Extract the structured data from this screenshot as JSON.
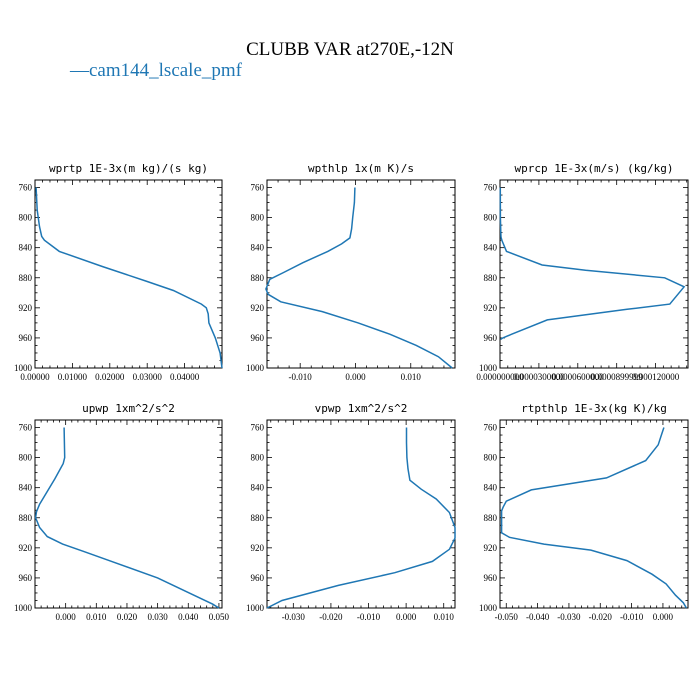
{
  "figure": {
    "title": "CLUBB VAR at270E,-12N",
    "legend": {
      "marker": "—",
      "label": "cam144_lscale_pmf",
      "color": "#1f77b4"
    }
  },
  "chart_data": [
    {
      "type": "line",
      "title": "wprtp  1E-3x(m kg)/(s kg)",
      "xlim": [
        0,
        0.05
      ],
      "ylim": [
        1000,
        750
      ],
      "xticks": [
        0,
        0.01,
        0.02,
        0.03,
        0.04
      ],
      "xtick_labels": [
        "0.00000",
        "0.01000",
        "0.02000",
        "0.03000",
        "0.04000"
      ],
      "yticks": [
        760,
        800,
        840,
        880,
        920,
        960,
        1000
      ],
      "ytick_labels": [
        "760",
        "800",
        "840",
        "880",
        "920",
        "960",
        "1000"
      ],
      "series": [
        {
          "x": [
            0.0003,
            0.0006,
            0.0012,
            0.0018,
            0.0025,
            0.0065,
            0.018,
            0.03,
            0.037,
            0.0445,
            0.0458,
            0.0463,
            0.0465,
            0.0482,
            0.0495,
            0.05
          ],
          "y": [
            760,
            790,
            812,
            825,
            830,
            845,
            865,
            885,
            897,
            915,
            920,
            928,
            940,
            960,
            980,
            1000
          ]
        }
      ]
    },
    {
      "type": "line",
      "title": "wpthlp  1x(m K)/s",
      "xlim": [
        -0.016,
        0.018
      ],
      "ylim": [
        1000,
        750
      ],
      "xticks": [
        -0.01,
        0,
        0.01
      ],
      "xtick_labels": [
        "-0.010",
        "0.000",
        "0.010"
      ],
      "yticks": [
        760,
        800,
        840,
        880,
        920,
        960,
        1000
      ],
      "ytick_labels": [
        "760",
        "800",
        "840",
        "880",
        "920",
        "960",
        "1000"
      ],
      "series": [
        {
          "x": [
            -0.0001,
            -0.0002,
            -0.0005,
            -0.0007,
            -0.001,
            -0.0025,
            -0.005,
            -0.0095,
            -0.013,
            -0.0155,
            -0.0162,
            -0.0158,
            -0.0135,
            -0.006,
            0.0005,
            0.0062,
            0.011,
            0.015,
            0.0175
          ],
          "y": [
            760,
            780,
            800,
            815,
            827,
            835,
            845,
            860,
            873,
            882,
            895,
            902,
            912,
            925,
            940,
            955,
            970,
            985,
            1000
          ]
        }
      ]
    },
    {
      "type": "line",
      "title": "wprcp  1E-3x(m/s) (kg/kg)",
      "xlim": [
        0,
        0.000145
      ],
      "ylim": [
        1000,
        750
      ],
      "xticks": [
        0,
        3e-05,
        6e-05,
        9e-05,
        0.00012
      ],
      "xtick_labels": [
        "0.000000000",
        "0.0000300000",
        "0.0000600000",
        "0.0000899999",
        "0.000120000"
      ],
      "yticks": [
        760,
        800,
        840,
        880,
        920,
        960,
        1000
      ],
      "ytick_labels": [
        "760",
        "800",
        "840",
        "880",
        "920",
        "960",
        "1000"
      ],
      "series": [
        {
          "x": [
            2e-07,
            3e-07,
            6e-07,
            8e-07,
            1.6e-06,
            5e-06,
            3.25e-05,
            6.6e-05,
            0.000127,
            0.000142,
            0.000131,
            9.8e-05,
            3.65e-05,
            9e-06,
            2.2e-06,
            5e-07
          ],
          "y": [
            760,
            800,
            820,
            826,
            831,
            845,
            863,
            870,
            880,
            892,
            915,
            922,
            936,
            955,
            960,
            962
          ]
        }
      ]
    },
    {
      "type": "line",
      "title": "upwp  1xm^2/s^2",
      "xlim": [
        -0.01,
        0.051
      ],
      "ylim": [
        1000,
        750
      ],
      "xticks": [
        0,
        0.01,
        0.02,
        0.03,
        0.04,
        0.05
      ],
      "xtick_labels": [
        "0.000",
        "0.010",
        "0.020",
        "0.030",
        "0.040",
        "0.050"
      ],
      "yticks": [
        760,
        800,
        840,
        880,
        920,
        960,
        1000
      ],
      "ytick_labels": [
        "760",
        "800",
        "840",
        "880",
        "920",
        "960",
        "1000"
      ],
      "series": [
        {
          "x": [
            -0.0005,
            -0.0004,
            -0.0003,
            -0.0008,
            -0.0035,
            -0.0085,
            -0.0095,
            -0.0098,
            -0.0085,
            -0.006,
            -0.001,
            0.006,
            0.015,
            0.03,
            0.048,
            0.05
          ],
          "y": [
            760,
            780,
            800,
            808,
            828,
            862,
            872,
            880,
            893,
            905,
            915,
            925,
            938,
            960,
            995,
            1000
          ]
        }
      ]
    },
    {
      "type": "line",
      "title": "vpwp  1xm^2/s^2",
      "xlim": [
        -0.037,
        0.013
      ],
      "ylim": [
        1000,
        750
      ],
      "xticks": [
        -0.03,
        -0.02,
        -0.01,
        0,
        0.01
      ],
      "xtick_labels": [
        "-0.030",
        "-0.020",
        "-0.010",
        "0.000",
        "0.010"
      ],
      "yticks": [
        760,
        800,
        840,
        880,
        920,
        960,
        1000
      ],
      "ytick_labels": [
        "760",
        "800",
        "840",
        "880",
        "920",
        "960",
        "1000"
      ],
      "series": [
        {
          "x": [
            0.0001,
            0.0001,
            0.0002,
            0.0005,
            0.001,
            0.004,
            0.008,
            0.0115,
            0.013,
            0.013,
            0.0115,
            0.007,
            -0.003,
            -0.018,
            -0.033,
            -0.037
          ],
          "y": [
            760,
            780,
            800,
            815,
            830,
            842,
            855,
            873,
            893,
            907,
            922,
            938,
            953,
            970,
            990,
            1000
          ]
        }
      ]
    },
    {
      "type": "line",
      "title": "rtpthlp  1E-3x(kg K)/kg",
      "xlim": [
        -0.052,
        0.008
      ],
      "ylim": [
        1000,
        750
      ],
      "xticks": [
        -0.05,
        -0.04,
        -0.03,
        -0.02,
        -0.01,
        0
      ],
      "xtick_labels": [
        "-0.050",
        "-0.040",
        "-0.030",
        "-0.020",
        "-0.010",
        "0.000"
      ],
      "yticks": [
        760,
        800,
        840,
        880,
        920,
        960,
        1000
      ],
      "ytick_labels": [
        "760",
        "800",
        "840",
        "880",
        "920",
        "960",
        "1000"
      ],
      "series": [
        {
          "x": [
            0.0003,
            -0.0005,
            -0.0015,
            -0.0055,
            -0.018,
            -0.042,
            -0.05,
            -0.051,
            -0.0515,
            -0.0515,
            -0.049,
            -0.038,
            -0.023,
            -0.0115,
            -0.0035,
            0.001,
            0.004,
            0.0065,
            0.0075
          ],
          "y": [
            760,
            770,
            783,
            804,
            827,
            843,
            858,
            866,
            871,
            900,
            906,
            915,
            923,
            937,
            955,
            968,
            983,
            993,
            1000
          ]
        }
      ]
    }
  ]
}
